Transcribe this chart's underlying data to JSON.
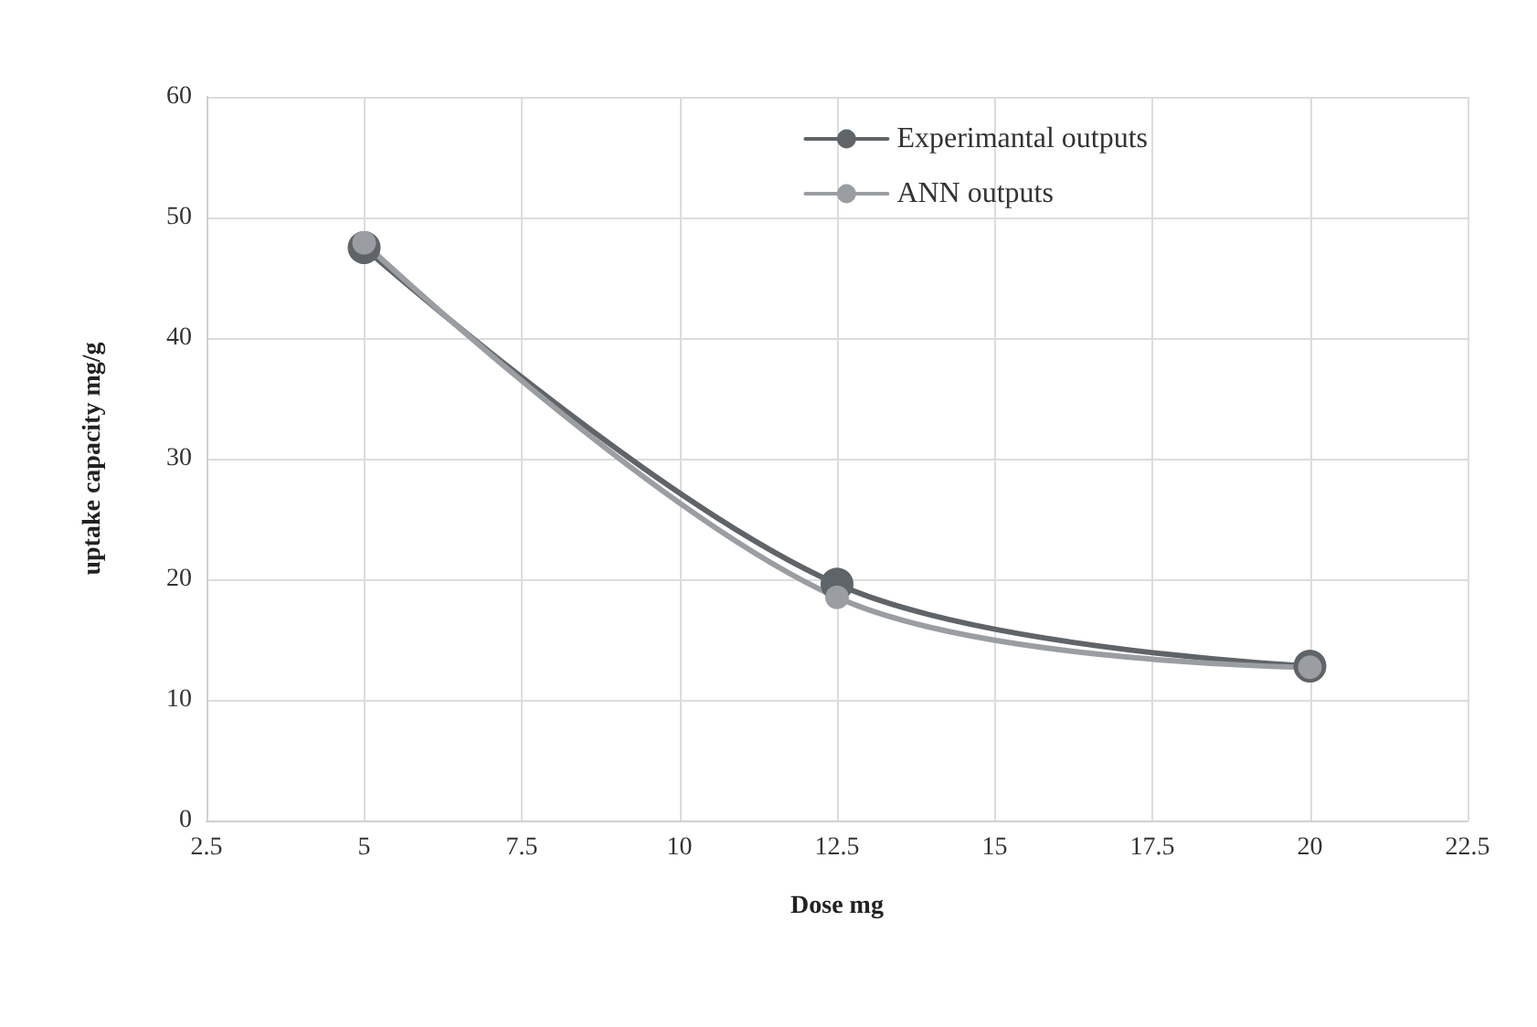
{
  "chart_data": {
    "type": "line",
    "xlabel": "Dose mg",
    "ylabel": "uptake capacity mg/g",
    "x": [
      5,
      12.5,
      20
    ],
    "series": [
      {
        "name": "Experimantal outputs",
        "color": "#5f6468",
        "values": [
          47.5,
          19.6,
          12.8
        ]
      },
      {
        "name": "ANN outputs",
        "color": "#9a9ea2",
        "values": [
          47.9,
          18.5,
          12.7
        ]
      }
    ],
    "xlim": [
      2.5,
      22.5
    ],
    "xticks": [
      2.5,
      5,
      7.5,
      10,
      12.5,
      15,
      17.5,
      20,
      22.5
    ],
    "ylim": [
      0,
      60
    ],
    "yticks": [
      0,
      10,
      20,
      30,
      40,
      50,
      60
    ],
    "grid": true,
    "legend": "top right",
    "marker": "circle",
    "line_style": "solid"
  }
}
